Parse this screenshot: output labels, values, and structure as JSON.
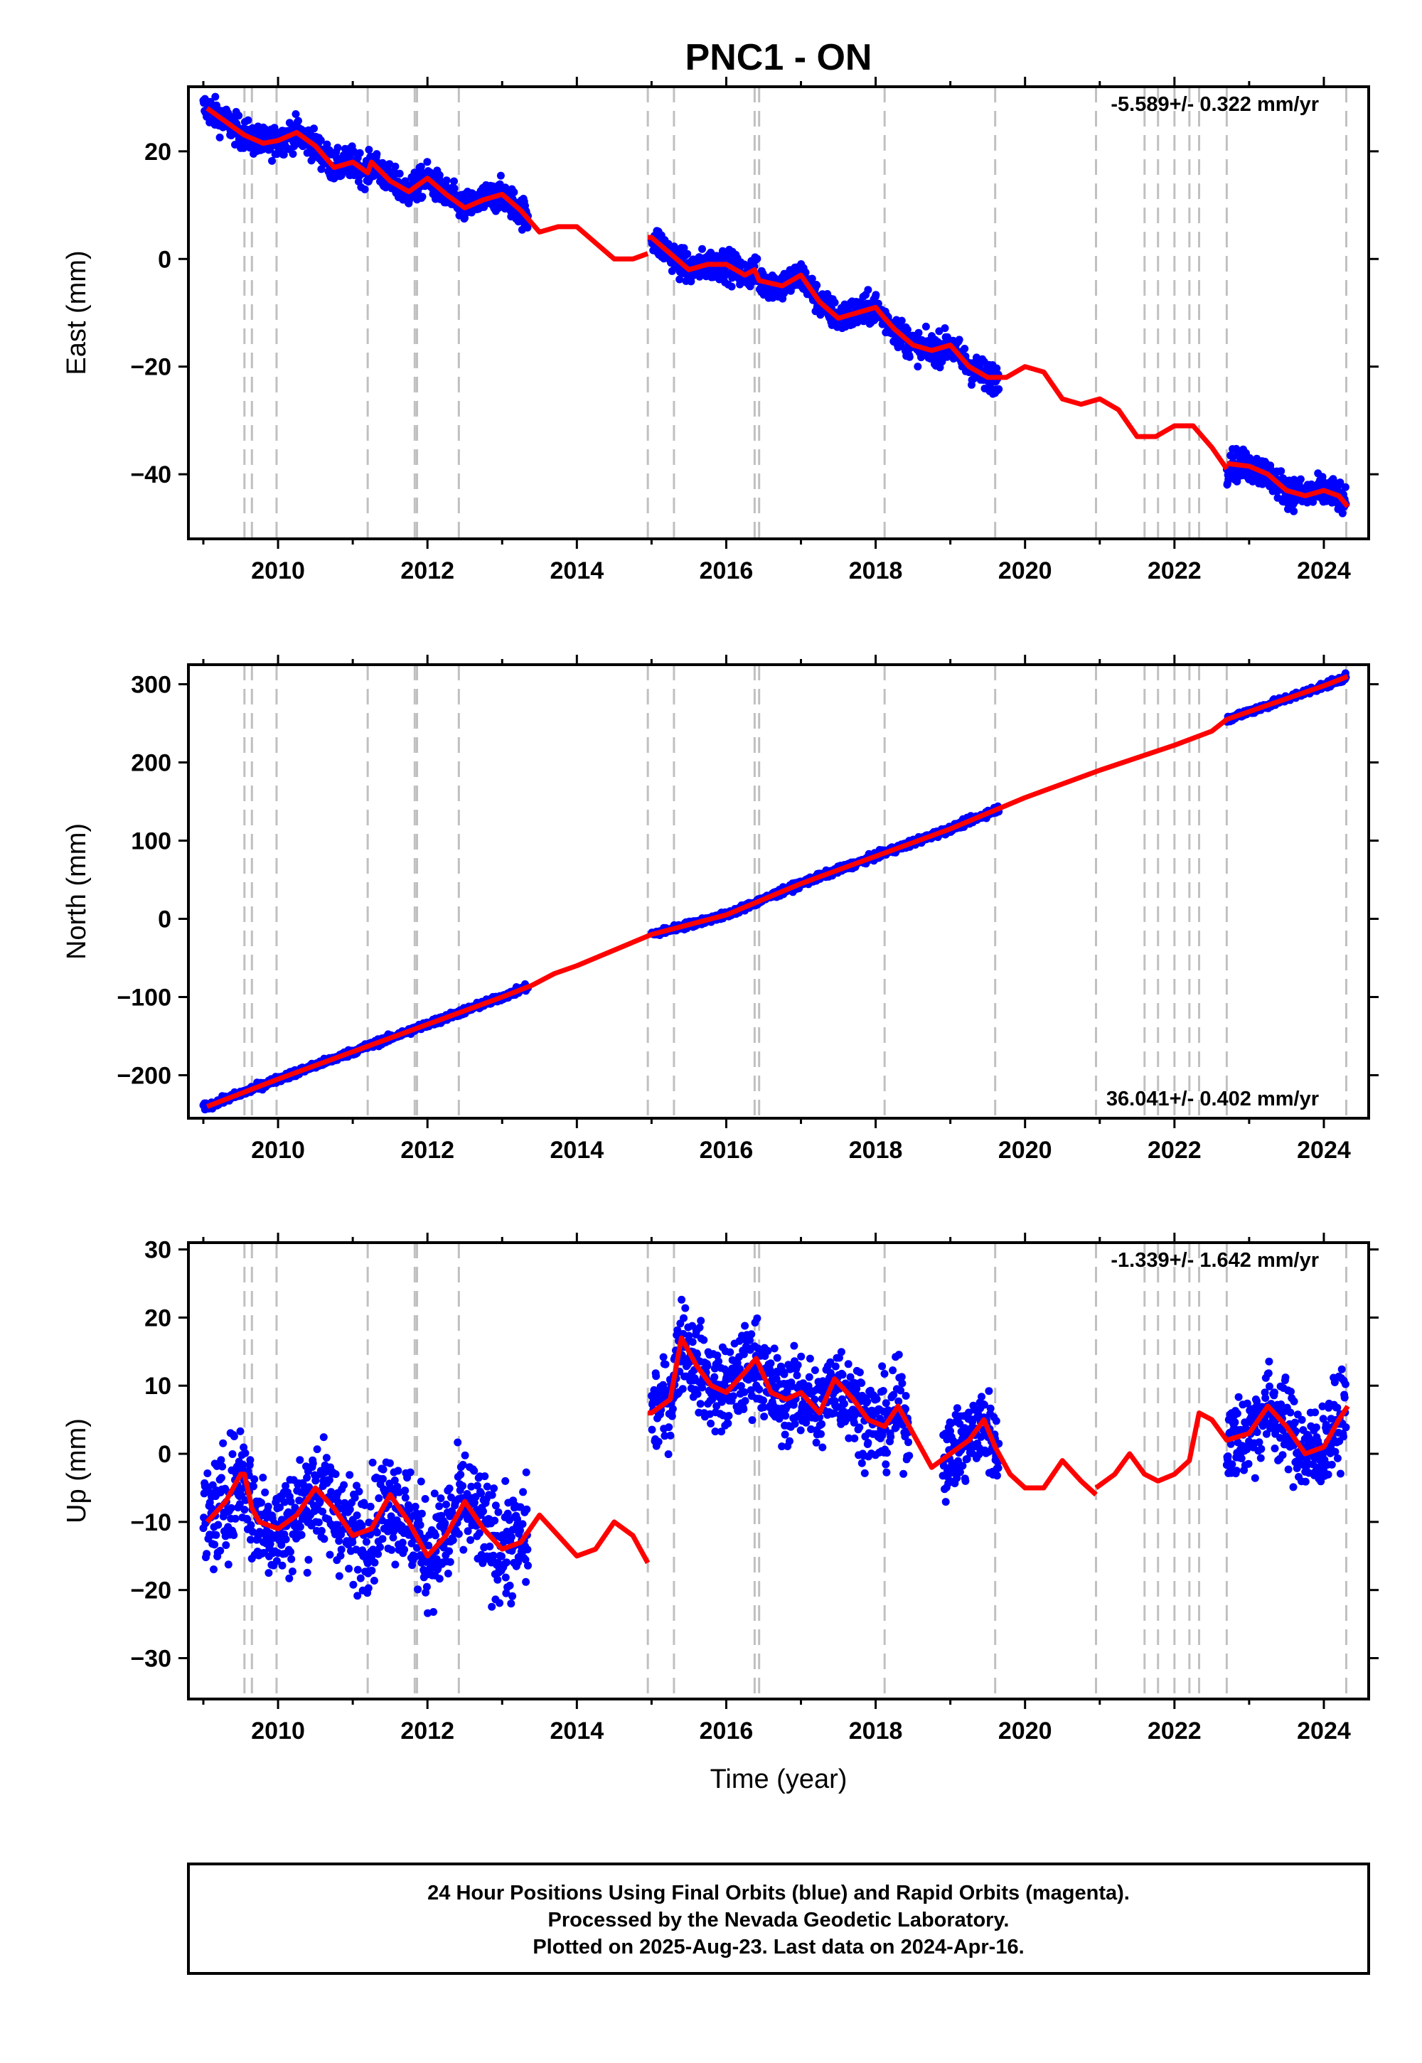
{
  "figure_title": "PNC1 - ON",
  "xlabel": "Time (year)",
  "footer": {
    "line1": "24 Hour Positions Using Final Orbits (blue) and Rapid Orbits (magenta).",
    "line2": "Processed by the Nevada Geodetic Laboratory.",
    "line3": "Plotted on 2025-Aug-23. Last data on 2024-Apr-16."
  },
  "colors": {
    "points": "#0000ff",
    "model": "#ff0000",
    "event_lines": "#c0c0c0",
    "axes": "#000000"
  },
  "chart_data": [
    {
      "type": "scatter",
      "ylabel": "East (mm)",
      "rate_label": "-5.589+/- 0.322 mm/yr",
      "rate_corner": "top-right",
      "xlim": [
        2008.8,
        2024.6
      ],
      "ylim": [
        -52,
        32
      ],
      "xticks": [
        2010,
        2012,
        2014,
        2016,
        2018,
        2020,
        2022,
        2024
      ],
      "yticks": [
        20,
        0,
        -20,
        -40
      ],
      "event_lines_x": [
        2009.55,
        2009.65,
        2009.98,
        2011.2,
        2011.83,
        2011.86,
        2012.42,
        2014.95,
        2015.3,
        2016.38,
        2016.44,
        2018.12,
        2019.6,
        2020.95,
        2021.6,
        2021.78,
        2022.0,
        2022.2,
        2022.33,
        2022.7,
        2024.3
      ],
      "model_segments": [
        {
          "x": [
            2009.05,
            2009.55,
            2009.8,
            2010.0,
            2010.25,
            2010.5,
            2010.75,
            2011.0,
            2011.2,
            2011.25,
            2011.5,
            2011.75,
            2012.0,
            2012.25,
            2012.5,
            2012.75,
            2013.0,
            2013.25,
            2013.5,
            2013.75,
            2014.0,
            2014.25,
            2014.5,
            2014.75,
            2014.95
          ],
          "y": [
            28,
            23,
            21.5,
            22,
            23.5,
            21,
            17,
            18,
            16,
            18,
            14.5,
            12.5,
            15,
            12,
            9.5,
            11,
            12,
            9,
            5,
            6,
            6,
            3,
            0,
            0,
            1
          ]
        },
        {
          "x": [
            2014.95,
            2015.0,
            2015.25,
            2015.5,
            2015.75,
            2016.0,
            2016.25,
            2016.38,
            2016.44,
            2016.75,
            2017.0,
            2017.25,
            2017.5,
            2017.75,
            2018.0,
            2018.12,
            2018.25,
            2018.5,
            2018.75,
            2019.0,
            2019.25,
            2019.5,
            2019.75,
            2020.0,
            2020.25,
            2020.5,
            2020.75,
            2021.0,
            2021.25,
            2021.5,
            2021.75,
            2022.0,
            2022.25,
            2022.5,
            2022.7
          ],
          "y": [
            4,
            4,
            1,
            -2,
            -1,
            -1,
            -3,
            -2,
            -4,
            -5,
            -3,
            -8,
            -11,
            -10,
            -9,
            -11,
            -13,
            -16,
            -17,
            -16,
            -20,
            -22,
            -22,
            -20,
            -21,
            -26,
            -27,
            -26,
            -28,
            -33,
            -33,
            -31,
            -31,
            -35,
            -39
          ]
        },
        {
          "x": [
            2022.7,
            2023.0,
            2023.25,
            2023.5,
            2023.75,
            2024.0,
            2024.2,
            2024.32
          ],
          "y": [
            -38,
            -38.5,
            -40,
            -43,
            -44,
            -43,
            -44,
            -46
          ]
        }
      ],
      "scatter_segments": [
        {
          "x0": 2009.0,
          "x1": 2013.35,
          "spread": 2.0
        },
        {
          "x0": 2015.0,
          "x1": 2019.65,
          "spread": 2.0
        },
        {
          "x0": 2022.7,
          "x1": 2024.3,
          "spread": 2.0
        }
      ]
    },
    {
      "type": "scatter",
      "ylabel": "North (mm)",
      "rate_label": "36.041+/- 0.402 mm/yr",
      "rate_corner": "bottom-right",
      "xlim": [
        2008.8,
        2024.6
      ],
      "ylim": [
        -255,
        325
      ],
      "xticks": [
        2010,
        2012,
        2014,
        2016,
        2018,
        2020,
        2022,
        2024
      ],
      "yticks": [
        300,
        200,
        100,
        0,
        -100,
        -200
      ],
      "event_lines_x": [
        2009.55,
        2009.65,
        2009.98,
        2011.2,
        2011.83,
        2011.86,
        2012.42,
        2014.95,
        2015.3,
        2016.38,
        2016.44,
        2018.12,
        2019.6,
        2020.95,
        2021.6,
        2021.78,
        2022.0,
        2022.2,
        2022.33,
        2022.7,
        2024.3
      ],
      "model_segments": [
        {
          "x": [
            2009.05,
            2010.0,
            2011.0,
            2012.0,
            2013.0,
            2013.4,
            2013.7,
            2014.0,
            2014.5,
            2015.0,
            2016.0,
            2017.0,
            2018.0,
            2019.0,
            2020.0,
            2021.0,
            2022.0,
            2022.5,
            2022.7,
            2023.0,
            2024.0,
            2024.32
          ],
          "y": [
            -240,
            -205,
            -170,
            -135,
            -100,
            -85,
            -70,
            -60,
            -40,
            -20,
            5,
            45,
            80,
            115,
            155,
            190,
            222,
            240,
            255,
            265,
            298,
            310
          ]
        }
      ],
      "scatter_segments": [
        {
          "x0": 2009.0,
          "x1": 2013.35,
          "spread": 3.0
        },
        {
          "x0": 2015.0,
          "x1": 2019.65,
          "spread": 3.0
        },
        {
          "x0": 2022.7,
          "x1": 2024.3,
          "spread": 3.0
        }
      ]
    },
    {
      "type": "scatter",
      "ylabel": "Up (mm)",
      "rate_label": "-1.339+/- 1.642 mm/yr",
      "rate_corner": "top-right",
      "xlim": [
        2008.8,
        2024.6
      ],
      "ylim": [
        -36,
        31
      ],
      "xticks": [
        2010,
        2012,
        2014,
        2016,
        2018,
        2020,
        2022,
        2024
      ],
      "yticks": [
        30,
        20,
        10,
        0,
        -10,
        -20,
        -30
      ],
      "event_lines_x": [
        2009.55,
        2009.65,
        2009.98,
        2011.2,
        2011.83,
        2011.86,
        2012.42,
        2014.95,
        2015.3,
        2016.38,
        2016.44,
        2018.12,
        2019.6,
        2020.95,
        2021.6,
        2021.78,
        2022.0,
        2022.2,
        2022.33,
        2022.7,
        2024.3
      ],
      "model_segments": [
        {
          "x": [
            2009.05,
            2009.3,
            2009.5,
            2009.55,
            2009.65,
            2009.75,
            2010.0,
            2010.25,
            2010.5,
            2010.75,
            2011.0,
            2011.25,
            2011.5,
            2011.75,
            2012.0,
            2012.25,
            2012.5,
            2012.75,
            2013.0,
            2013.25,
            2013.5,
            2013.75,
            2014.0,
            2014.25,
            2014.5,
            2014.75,
            2014.95
          ],
          "y": [
            -10,
            -7,
            -3,
            -3,
            -8,
            -10,
            -11,
            -9,
            -5,
            -8,
            -12,
            -11,
            -6,
            -10,
            -15,
            -12,
            -7,
            -11,
            -14,
            -13,
            -9,
            -12,
            -15,
            -14,
            -10,
            -12,
            -16
          ]
        },
        {
          "x": [
            2014.95,
            2015.0,
            2015.25,
            2015.4,
            2015.6,
            2015.8,
            2016.0,
            2016.25,
            2016.4,
            2016.6,
            2016.8,
            2017.0,
            2017.25,
            2017.45,
            2017.7,
            2017.9,
            2018.12,
            2018.3,
            2018.5,
            2018.75,
            2019.0,
            2019.25,
            2019.45,
            2019.6,
            2019.8,
            2020.0,
            2020.25,
            2020.5,
            2020.75,
            2020.95
          ],
          "y": [
            6,
            6,
            8,
            17,
            13,
            10,
            9,
            12,
            14,
            9,
            8,
            9,
            6,
            11,
            8,
            5,
            4,
            7,
            3,
            -2,
            0,
            2,
            5,
            1,
            -3,
            -5,
            -5,
            -1,
            -4,
            -6
          ]
        },
        {
          "x": [
            2020.95,
            2021.2,
            2021.4,
            2021.6,
            2021.78,
            2022.0,
            2022.2,
            2022.33,
            2022.5,
            2022.7,
            2023.0,
            2023.25,
            2023.5,
            2023.75,
            2024.0,
            2024.2,
            2024.32
          ],
          "y": [
            -5,
            -3,
            0,
            -3,
            -4,
            -3,
            -1,
            6,
            5,
            2,
            3,
            7,
            4,
            0,
            1,
            5,
            7
          ]
        }
      ],
      "scatter_segments": [
        {
          "x0": 2009.0,
          "x1": 2013.35,
          "spread": 5.5
        },
        {
          "x0": 2015.0,
          "x1": 2018.45,
          "spread": 4.5
        },
        {
          "x0": 2018.9,
          "x1": 2019.65,
          "spread": 4.0
        },
        {
          "x0": 2022.7,
          "x1": 2024.3,
          "spread": 4.5
        }
      ]
    }
  ]
}
